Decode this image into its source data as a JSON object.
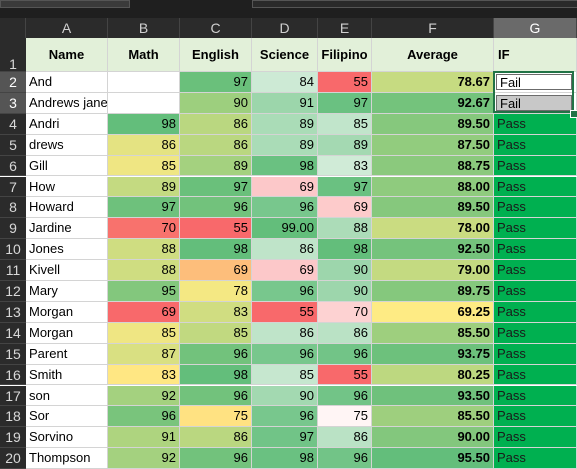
{
  "column_headers": [
    "A",
    "B",
    "C",
    "D",
    "E",
    "F",
    "G"
  ],
  "selected_column": "G",
  "header_row": [
    "Name",
    "Math",
    "English",
    "Science",
    "Filipino",
    "Average",
    "IF"
  ],
  "rows": [
    {
      "num": "2",
      "name": "And",
      "math": "",
      "english": "97",
      "science": "84",
      "filipino": "55",
      "average": "78.67",
      "result": "Fail"
    },
    {
      "num": "3",
      "name": "Andrews jane",
      "math": "",
      "english": "90",
      "science": "91",
      "filipino": "97",
      "average": "92.67",
      "result": "Fail"
    },
    {
      "num": "4",
      "name": "Andri",
      "math": "98",
      "english": "86",
      "science": "89",
      "filipino": "85",
      "average": "89.50",
      "result": "Pass"
    },
    {
      "num": "5",
      "name": "drews",
      "math": "86",
      "english": "86",
      "science": "89",
      "filipino": "89",
      "average": "87.50",
      "result": "Pass"
    },
    {
      "num": "6",
      "name": "Gill",
      "math": "85",
      "english": "89",
      "science": "98",
      "filipino": "83",
      "average": "88.75",
      "result": "Pass"
    },
    {
      "num": "7",
      "name": "How",
      "math": "89",
      "english": "97",
      "science": "69",
      "filipino": "97",
      "average": "88.00",
      "result": "Pass"
    },
    {
      "num": "8",
      "name": "Howard",
      "math": "97",
      "english": "96",
      "science": "96",
      "filipino": "69",
      "average": "89.50",
      "result": "Pass"
    },
    {
      "num": "9",
      "name": "Jardine",
      "math": "70",
      "english": "55",
      "science": "99.00",
      "filipino": "88",
      "average": "78.00",
      "result": "Pass"
    },
    {
      "num": "10",
      "name": "Jones",
      "math": "88",
      "english": "98",
      "science": "86",
      "filipino": "98",
      "average": "92.50",
      "result": "Pass"
    },
    {
      "num": "11",
      "name": "Kivell",
      "math": "88",
      "english": "69",
      "science": "69",
      "filipino": "90",
      "average": "79.00",
      "result": "Pass"
    },
    {
      "num": "12",
      "name": "Mary",
      "math": "95",
      "english": "78",
      "science": "96",
      "filipino": "90",
      "average": "89.75",
      "result": "Pass"
    },
    {
      "num": "13",
      "name": "Morgan",
      "math": "69",
      "english": "83",
      "science": "55",
      "filipino": "70",
      "average": "69.25",
      "result": "Pass"
    },
    {
      "num": "14",
      "name": "Morgan",
      "math": "85",
      "english": "85",
      "science": "86",
      "filipino": "86",
      "average": "85.50",
      "result": "Pass"
    },
    {
      "num": "15",
      "name": "Parent",
      "math": "87",
      "english": "96",
      "science": "96",
      "filipino": "96",
      "average": "93.75",
      "result": "Pass"
    },
    {
      "num": "16",
      "name": "Smith",
      "math": "83",
      "english": "98",
      "science": "85",
      "filipino": "55",
      "average": "80.25",
      "result": "Pass"
    },
    {
      "num": "17",
      "name": "son",
      "math": "92",
      "english": "96",
      "science": "90",
      "filipino": "96",
      "average": "93.50",
      "result": "Pass"
    },
    {
      "num": "18",
      "name": "Sor",
      "math": "96",
      "english": "75",
      "science": "96",
      "filipino": "75",
      "average": "85.50",
      "result": "Pass"
    },
    {
      "num": "19",
      "name": "Sorvino",
      "math": "91",
      "english": "86",
      "science": "97",
      "filipino": "86",
      "average": "90.00",
      "result": "Pass"
    },
    {
      "num": "20",
      "name": "Thompson",
      "math": "92",
      "english": "96",
      "science": "98",
      "filipino": "96",
      "average": "95.50",
      "result": "Pass"
    }
  ],
  "colors": {
    "header_fill": "#e2f0d9",
    "pass_fill": "#00b050",
    "fail_selected_fill": "#c8c8c8",
    "scale_low": "#f8696b",
    "scale_mid": "#ffeb84",
    "scale_high": "#63be7b"
  }
}
